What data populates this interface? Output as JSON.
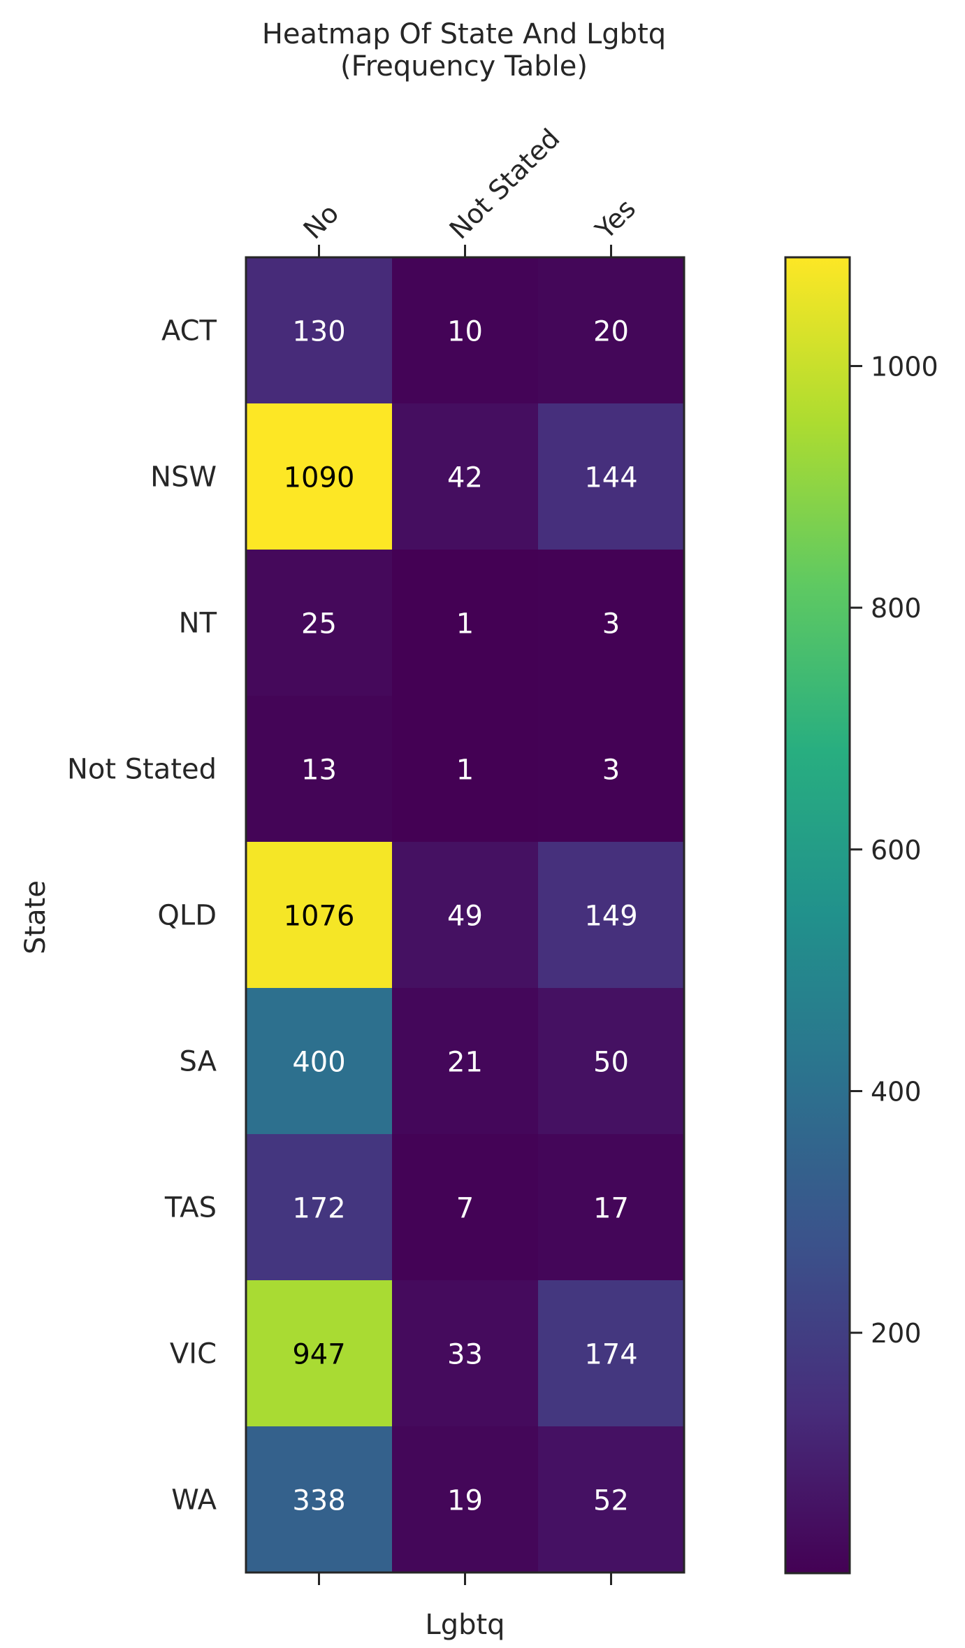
{
  "chart_data": {
    "type": "heatmap",
    "title": "Heatmap Of State And Lgbtq\n(Frequency Table)",
    "xlabel": "Lgbtq",
    "ylabel": "State",
    "x_categories": [
      "No",
      "Not Stated",
      "Yes"
    ],
    "y_categories": [
      "ACT",
      "NSW",
      "NT",
      "Not Stated",
      "QLD",
      "SA",
      "TAS",
      "VIC",
      "WA"
    ],
    "values": [
      [
        130,
        10,
        20
      ],
      [
        1090,
        42,
        144
      ],
      [
        25,
        1,
        3
      ],
      [
        13,
        1,
        3
      ],
      [
        1076,
        49,
        149
      ],
      [
        400,
        21,
        50
      ],
      [
        172,
        7,
        17
      ],
      [
        947,
        33,
        174
      ],
      [
        338,
        19,
        52
      ]
    ],
    "colormap": "viridis",
    "color_range": [
      1,
      1090
    ],
    "colorbar_ticks": [
      200,
      400,
      600,
      800,
      1000
    ],
    "colors": {
      "text_light": "#ffffff",
      "text_dark": "#000000",
      "axis": "#262626"
    }
  }
}
